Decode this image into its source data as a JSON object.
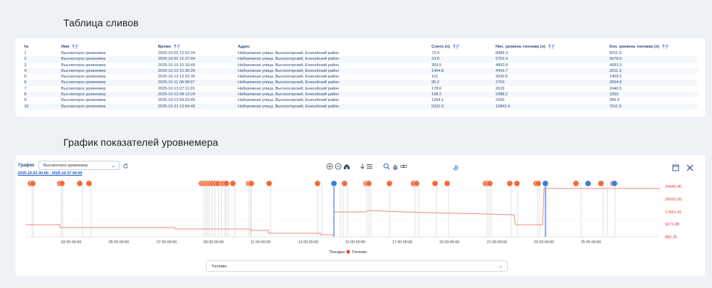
{
  "drains_section": {
    "title": "Таблица сливов"
  },
  "table": {
    "columns": [
      "№",
      "Имя",
      "Время",
      "Адрес",
      "Слито (л)",
      "Нач. уровень топлива (л)",
      "Кон. уровень топлива (л)"
    ],
    "rows": [
      [
        "1",
        "Высокогорск уровнемер",
        "2025-10-02 12:52:24",
        "Набережная улица, Высокогорский, Енисейский район",
        "72.4",
        "6084.3",
        "6011.9"
      ],
      [
        "2",
        "Высокогорск уровнемер",
        "2025-10-02 15:27:44",
        "Набережная улица, Высокогорский, Енисейский район",
        "23.8",
        "5702.4",
        "5678.6"
      ],
      [
        "3",
        "Высокогорск уровнемер",
        "2025-10-10 10:10:49",
        "Набережная улица, Высокогорский, Енисейский район",
        "309.5",
        "4892.8",
        "4583.3"
      ],
      [
        "4",
        "Высокогорск уровнемер",
        "2025-10-10 10:35:26",
        "Набережная улица, Высокогорский, Енисейский район",
        "1404.8",
        "4416.7",
        "3011.9"
      ],
      [
        "5",
        "Высокогорск уровнемер",
        "2025-10-10 12:02:35",
        "Набережная улица, Высокогорский, Енисейский район",
        "131",
        "2540.5",
        "2409.5"
      ],
      [
        "6",
        "Высокогорск уровнемер",
        "2025-10-11 08:38:07",
        "Набережная улица, Высокогорский, Енисейский район",
        "95.2",
        "2750",
        "2654.8"
      ],
      [
        "7",
        "Высокогорск уровнемер",
        "2025-10-13 07:11:20",
        "Набережная улица, Высокогорский, Енисейский район",
        "178.6",
        "2619",
        "2440.5"
      ],
      [
        "8",
        "Высокогорск уровнемер",
        "2025-10-13 08:13:24",
        "Набережная улица, Высокогорский, Енисейский район",
        "138.2",
        "2388.2",
        "2250"
      ],
      [
        "9",
        "Высокогорск уровнемер",
        "2025-10-13 09:23:45",
        "Набережная улица, Высокогорский, Енисейский район",
        "1294.1",
        "2200",
        "905.9"
      ],
      [
        "10",
        "Высокогорск уровнемер",
        "2025-10-21 13:54:40",
        "Набережная улица, Высокогорский, Енисейский район",
        "5331.5",
        "12843.4",
        "7511.9"
      ]
    ]
  },
  "chart_section": {
    "title": "График показателей уровнемера",
    "chart_label": "График",
    "sensor_select": "Высокогорск уровнемер",
    "date_range": "2025-10-01 00:00 - 2025-10-27 00:00",
    "fuel_select": "Топливо",
    "icons": [
      "zoom-in-icon",
      "zoom-out-icon",
      "home-icon",
      "download-icon",
      "menu-icon",
      "search-icon",
      "pan-icon",
      "link-icon",
      "reset-zoom-icon",
      "maximize-icon",
      "close-icon",
      "refresh-icon",
      "chevron-down-icon"
    ]
  },
  "chart_data": {
    "type": "line",
    "x_ticks": [
      "03 00:00:00",
      "05 00:00:00",
      "07 00:00:00",
      "09 00:00:00",
      "11 00:00:00",
      "13 00:00:00",
      "15 00:00:00",
      "17 00:00:00",
      "19 00:00:00",
      "21 00:00:00",
      "23 00:00:00",
      "25 00:00:00"
    ],
    "y_ticks": [
      "34440.40",
      "26050.95",
      "17661.41",
      "9271.88",
      "882.35"
    ],
    "legend": [
      "Поездки",
      "Топливо"
    ],
    "colors": {
      "fuel": "#f08a7a",
      "event": "#f26b3a",
      "trip": "#3b7ed8",
      "axis_text": "#e0393a"
    }
  }
}
